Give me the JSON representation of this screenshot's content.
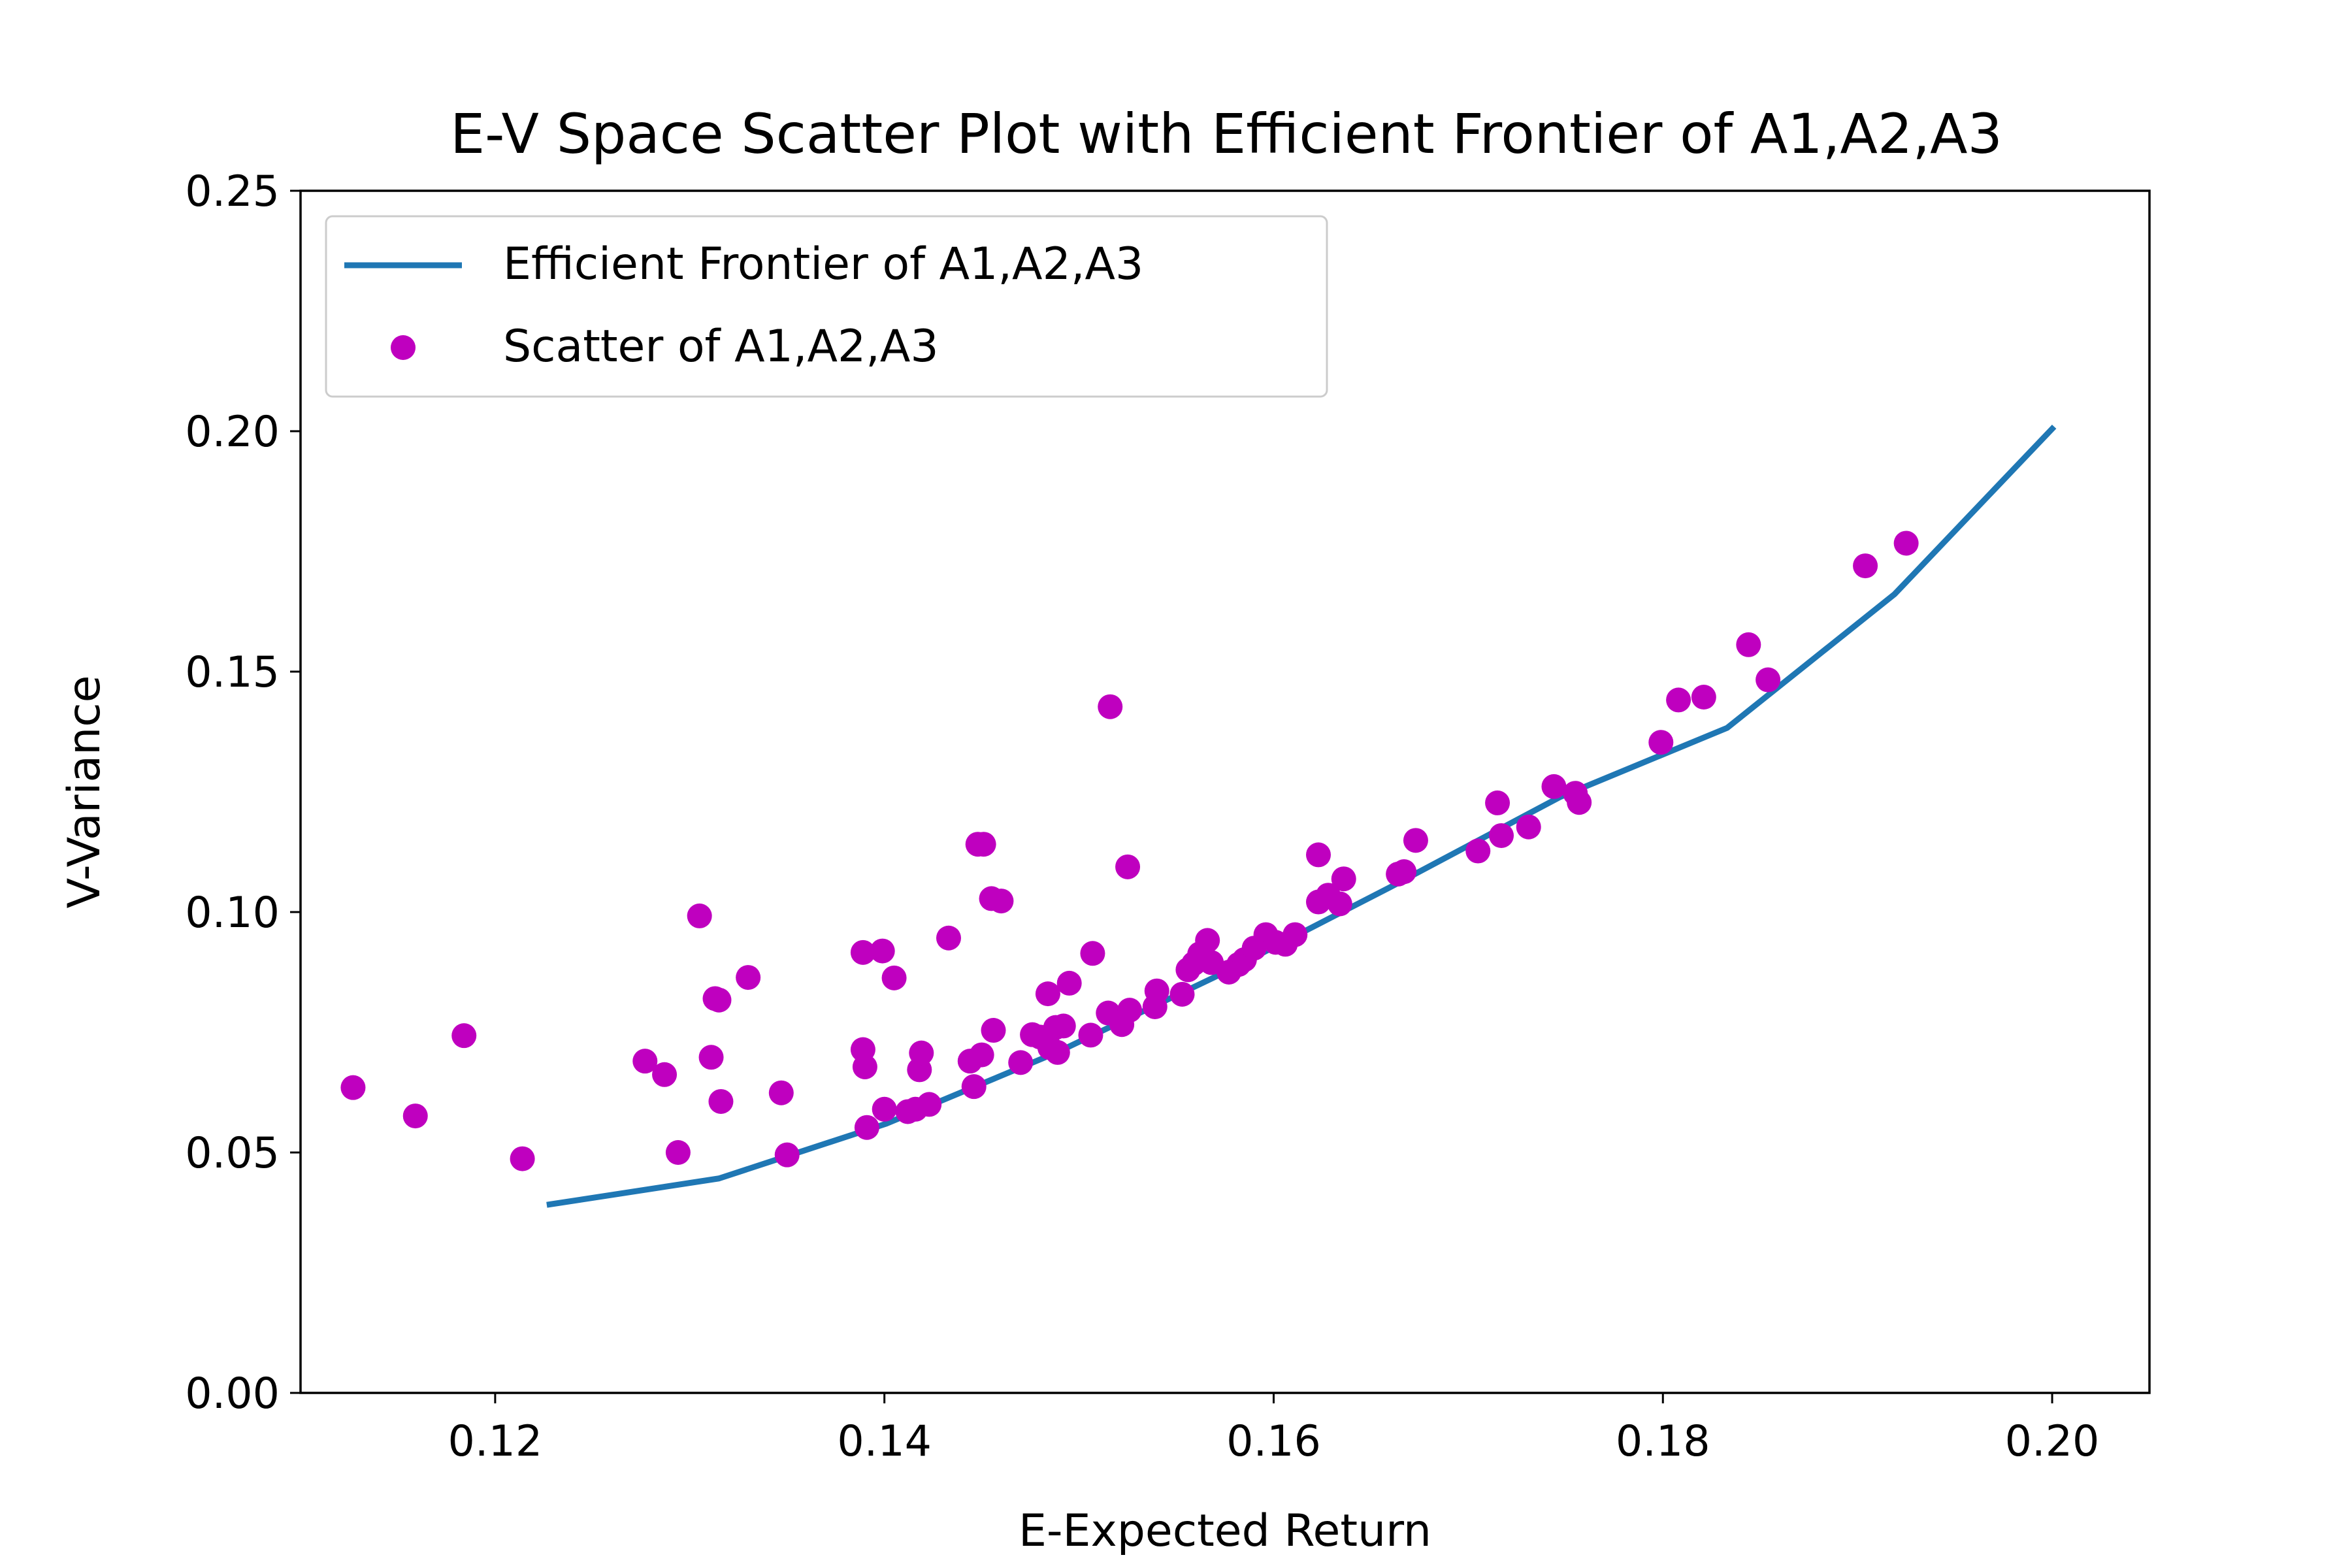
{
  "chart_data": {
    "type": "scatter",
    "title": "E-V Space Scatter Plot with Efficient Frontier of A1,A2,A3",
    "xlabel": "E-Expected Return",
    "ylabel": "V-Variance",
    "xlim": [
      0.11,
      0.205
    ],
    "ylim": [
      0.0,
      0.25
    ],
    "xticks": [
      0.12,
      0.14,
      0.16,
      0.18,
      0.2
    ],
    "xtick_labels": [
      "0.12",
      "0.14",
      "0.16",
      "0.18",
      "0.20"
    ],
    "yticks": [
      0.0,
      0.05,
      0.1,
      0.15,
      0.2,
      0.25
    ],
    "ytick_labels": [
      "0.00",
      "0.05",
      "0.10",
      "0.15",
      "0.20",
      "0.25"
    ],
    "grid": false,
    "legend_position": "top-left",
    "series": [
      {
        "name": "Efficient Frontier of A1,A2,A3",
        "kind": "line",
        "color": "#1f77b4",
        "x": [
          0.1228,
          0.1315,
          0.1401,
          0.1488,
          0.1574,
          0.166,
          0.1747,
          0.1833,
          0.1919,
          0.2
        ],
        "y": [
          0.0392,
          0.0446,
          0.056,
          0.0707,
          0.0873,
          0.1052,
          0.1239,
          0.1383,
          0.1661,
          0.2005
        ]
      },
      {
        "name": "Scatter of A1,A2,A3",
        "kind": "scatter",
        "color": "#bf00bf",
        "x": [
          0.1127,
          0.1159,
          0.1184,
          0.1214,
          0.1277,
          0.1287,
          0.1294,
          0.1305,
          0.1311,
          0.1313,
          0.1316,
          0.1315,
          0.133,
          0.1347,
          0.135,
          0.1389,
          0.1389,
          0.139,
          0.1391,
          0.1399,
          0.14,
          0.1405,
          0.1412,
          0.1416,
          0.1418,
          0.1419,
          0.1423,
          0.1433,
          0.1444,
          0.1446,
          0.1448,
          0.145,
          0.1451,
          0.1455,
          0.1456,
          0.146,
          0.147,
          0.1476,
          0.148,
          0.1484,
          0.1485,
          0.1488,
          0.1489,
          0.1492,
          0.1495,
          0.1506,
          0.1507,
          0.1515,
          0.1516,
          0.1522,
          0.1525,
          0.1526,
          0.1539,
          0.154,
          0.1553,
          0.1556,
          0.1559,
          0.1562,
          0.1566,
          0.1568,
          0.1577,
          0.1582,
          0.1585,
          0.159,
          0.1596,
          0.1601,
          0.1606,
          0.1611,
          0.1623,
          0.1623,
          0.1628,
          0.1634,
          0.1636,
          0.1664,
          0.1667,
          0.1673,
          0.1705,
          0.1715,
          0.1717,
          0.1731,
          0.1744,
          0.1755,
          0.1757,
          0.1799,
          0.1808,
          0.1821,
          0.1844,
          0.1854,
          0.1904,
          0.1925
        ],
        "y": [
          0.0635,
          0.0576,
          0.0743,
          0.0487,
          0.069,
          0.0662,
          0.05,
          0.0992,
          0.0698,
          0.082,
          0.0606,
          0.0817,
          0.0864,
          0.0624,
          0.0495,
          0.0916,
          0.0714,
          0.0678,
          0.0552,
          0.0919,
          0.059,
          0.0863,
          0.0585,
          0.059,
          0.0672,
          0.0707,
          0.06,
          0.0946,
          0.069,
          0.0637,
          0.1141,
          0.0703,
          0.1141,
          0.1028,
          0.0754,
          0.1023,
          0.0687,
          0.0745,
          0.074,
          0.083,
          0.0718,
          0.076,
          0.0708,
          0.0763,
          0.0852,
          0.0744,
          0.0914,
          0.079,
          0.1427,
          0.0766,
          0.1094,
          0.0796,
          0.0803,
          0.0836,
          0.0829,
          0.088,
          0.0893,
          0.0913,
          0.0941,
          0.0895,
          0.0875,
          0.0891,
          0.0901,
          0.0925,
          0.0953,
          0.0937,
          0.0933,
          0.0953,
          0.1119,
          0.1021,
          0.1035,
          0.1017,
          0.1069,
          0.1079,
          0.1084,
          0.1149,
          0.1127,
          0.1227,
          0.1159,
          0.1177,
          0.1261,
          0.1247,
          0.1228,
          0.1353,
          0.1441,
          0.1447,
          0.1556,
          0.1483,
          0.172,
          0.1767
        ]
      }
    ]
  }
}
